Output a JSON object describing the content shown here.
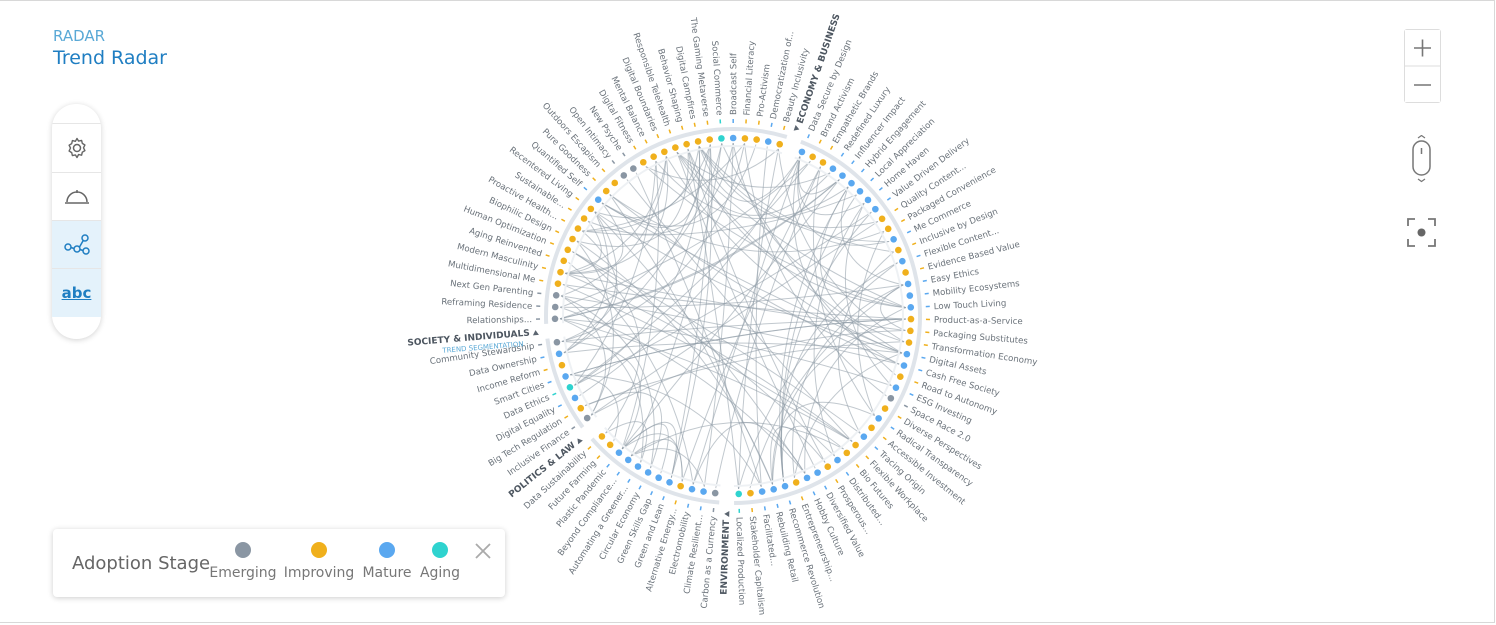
{
  "header": {
    "section": "RADAR",
    "title": "Trend Radar"
  },
  "toolbar": {
    "text_button": "abc"
  },
  "legend": {
    "title": "Adoption Stage",
    "items": [
      {
        "label": "Emerging",
        "color": "#8a96a3"
      },
      {
        "label": "Improving",
        "color": "#f0b01c"
      },
      {
        "label": "Mature",
        "color": "#5aa8f0"
      },
      {
        "label": "Aging",
        "color": "#2fd3cf"
      }
    ]
  },
  "radar": {
    "segments": [
      {
        "name": "ECONOMY & BUSINESS",
        "trends": [
          {
            "name": "Data Secure by Design",
            "stage": "Mature"
          },
          {
            "name": "Brand Activism",
            "stage": "Improving"
          },
          {
            "name": "Empathetic Brands",
            "stage": "Improving"
          },
          {
            "name": "Redefined Luxury",
            "stage": "Mature"
          },
          {
            "name": "Influencer Impact",
            "stage": "Mature"
          },
          {
            "name": "Hybrid Engagement",
            "stage": "Mature"
          },
          {
            "name": "Local Appreciation",
            "stage": "Mature"
          },
          {
            "name": "Home Haven",
            "stage": "Mature"
          },
          {
            "name": "Value Driven Delivery",
            "stage": "Mature"
          },
          {
            "name": "Quality Content...",
            "stage": "Improving"
          },
          {
            "name": "Packaged Convenience",
            "stage": "Improving"
          },
          {
            "name": "Me Commerce",
            "stage": "Mature"
          },
          {
            "name": "Inclusive by Design",
            "stage": "Improving"
          },
          {
            "name": "Flexible Content...",
            "stage": "Mature"
          },
          {
            "name": "Evidence Based Value",
            "stage": "Improving"
          },
          {
            "name": "Easy Ethics",
            "stage": "Mature"
          },
          {
            "name": "Mobility Ecosystems",
            "stage": "Mature"
          },
          {
            "name": "Low Touch Living",
            "stage": "Mature"
          },
          {
            "name": "Product-as-a-Service",
            "stage": "Improving"
          },
          {
            "name": "Packaging Substitutes",
            "stage": "Improving"
          },
          {
            "name": "Transformation Economy",
            "stage": "Improving"
          },
          {
            "name": "Digital Assets",
            "stage": "Mature"
          },
          {
            "name": "Cash Free Society",
            "stage": "Mature"
          },
          {
            "name": "Road to Autonomy",
            "stage": "Improving"
          },
          {
            "name": "ESG Investing",
            "stage": "Mature"
          },
          {
            "name": "Space Race 2.0",
            "stage": "Emerging"
          },
          {
            "name": "Diverse Perspectives",
            "stage": "Improving"
          },
          {
            "name": "Radical Transparency",
            "stage": "Mature"
          },
          {
            "name": "Accessible Investment",
            "stage": "Improving"
          },
          {
            "name": "Tracing Origin",
            "stage": "Mature"
          },
          {
            "name": "Flexible Workplace",
            "stage": "Improving"
          },
          {
            "name": "Bio Futures",
            "stage": "Improving"
          },
          {
            "name": "Distributed...",
            "stage": "Mature"
          },
          {
            "name": "Prosperous...",
            "stage": "Improving"
          },
          {
            "name": "Diversified Value",
            "stage": "Mature"
          },
          {
            "name": "Hobby Culture",
            "stage": "Mature"
          },
          {
            "name": "Entrepreneurship...",
            "stage": "Improving"
          },
          {
            "name": "Recommerce Revolution",
            "stage": "Mature"
          },
          {
            "name": "Rebuilding Retail",
            "stage": "Mature"
          },
          {
            "name": "Facilitated...",
            "stage": "Mature"
          },
          {
            "name": "Stakeholder Capitalism",
            "stage": "Improving"
          },
          {
            "name": "Localized Production",
            "stage": "Aging"
          }
        ]
      },
      {
        "name": "ENVIRONMENT",
        "trends": [
          {
            "name": "Carbon as a Currency",
            "stage": "Emerging"
          },
          {
            "name": "Climate Resilient...",
            "stage": "Mature"
          },
          {
            "name": "Electromobility",
            "stage": "Mature"
          },
          {
            "name": "Alternative Energy...",
            "stage": "Improving"
          },
          {
            "name": "Green and Lean",
            "stage": "Mature"
          },
          {
            "name": "Green Skills Gap",
            "stage": "Mature"
          },
          {
            "name": "Circular Economy",
            "stage": "Mature"
          },
          {
            "name": "Automating a Greener...",
            "stage": "Mature"
          },
          {
            "name": "Beyond Compliance...",
            "stage": "Mature"
          },
          {
            "name": "Plastic Pandemic",
            "stage": "Mature"
          },
          {
            "name": "Future Farming",
            "stage": "Improving"
          },
          {
            "name": "Data Sustainability",
            "stage": "Improving"
          }
        ]
      },
      {
        "name": "POLITICS & LAW",
        "trends": [
          {
            "name": "Inclusive Finance",
            "stage": "Emerging"
          },
          {
            "name": "Big Tech Regulation",
            "stage": "Improving"
          },
          {
            "name": "Digital Equality",
            "stage": "Mature"
          },
          {
            "name": "Data Ethics",
            "stage": "Aging"
          },
          {
            "name": "Smart Cities",
            "stage": "Mature"
          },
          {
            "name": "Income Reform",
            "stage": "Improving"
          },
          {
            "name": "Data Ownership",
            "stage": "Mature"
          },
          {
            "name": "Community Stewardship",
            "stage": "Emerging"
          }
        ]
      },
      {
        "name": "SOCIETY & INDIVIDUALS",
        "subtitle": "TREND SEGMENTATION",
        "trends": [
          {
            "name": "Relationships...",
            "stage": "Emerging"
          },
          {
            "name": "Reframing Residence",
            "stage": "Emerging"
          },
          {
            "name": "Next Gen Parenting",
            "stage": "Emerging"
          },
          {
            "name": "Multidimensional Me",
            "stage": "Improving"
          },
          {
            "name": "Modern Masculinity",
            "stage": "Improving"
          },
          {
            "name": "Aging Reinvented",
            "stage": "Improving"
          },
          {
            "name": "Human Optimization",
            "stage": "Improving"
          },
          {
            "name": "Biophilic Design",
            "stage": "Improving"
          },
          {
            "name": "Proactive Health...",
            "stage": "Improving"
          },
          {
            "name": "Sustainable...",
            "stage": "Improving"
          },
          {
            "name": "Recentered Living",
            "stage": "Improving"
          },
          {
            "name": "Quantified Self",
            "stage": "Mature"
          },
          {
            "name": "Pure Goodness",
            "stage": "Improving"
          },
          {
            "name": "Outdoors Escapism",
            "stage": "Improving"
          },
          {
            "name": "Open Intimacy",
            "stage": "Emerging"
          },
          {
            "name": "New Psyche",
            "stage": "Emerging"
          },
          {
            "name": "Digital Fitness",
            "stage": "Improving"
          },
          {
            "name": "Mental Balance",
            "stage": "Improving"
          },
          {
            "name": "Digital Boundaries",
            "stage": "Improving"
          },
          {
            "name": "Responsible Telehealth",
            "stage": "Improving"
          },
          {
            "name": "Behavior Shaping",
            "stage": "Improving"
          },
          {
            "name": "Digital Campfires",
            "stage": "Improving"
          },
          {
            "name": "The Gaming Metaverse",
            "stage": "Improving"
          },
          {
            "name": "Social Commerce",
            "stage": "Aging"
          },
          {
            "name": "Broadcast Self",
            "stage": "Mature"
          },
          {
            "name": "Financial Literacy",
            "stage": "Improving"
          },
          {
            "name": "Pro-Activism",
            "stage": "Improving"
          },
          {
            "name": "Democratization of...",
            "stage": "Mature"
          },
          {
            "name": "Beauty Inclusivity",
            "stage": "Improving"
          }
        ]
      }
    ]
  }
}
